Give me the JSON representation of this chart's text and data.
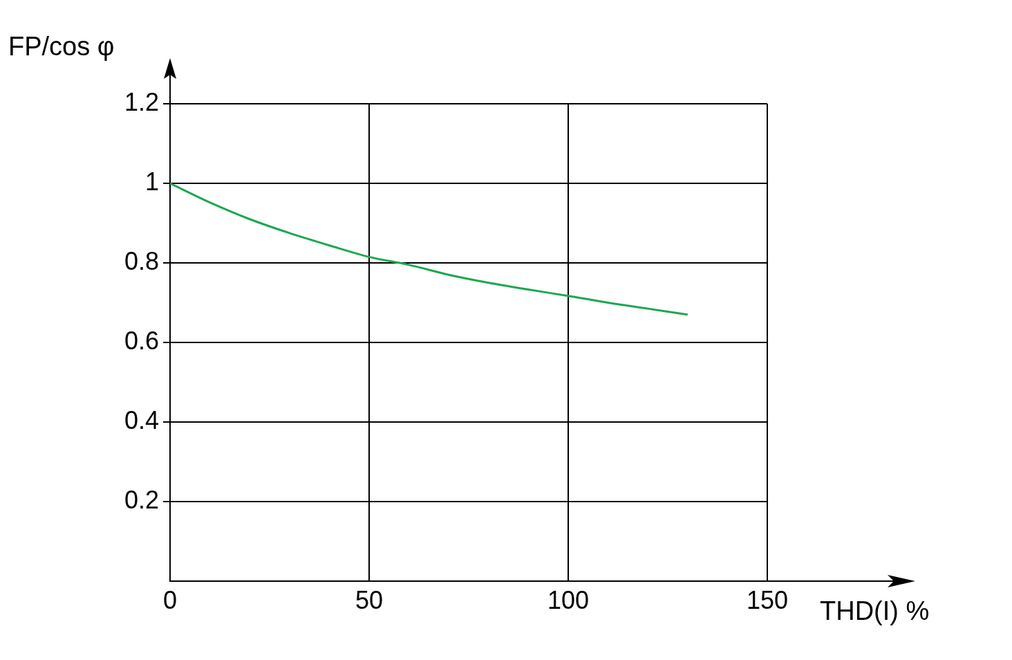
{
  "chart_data": {
    "type": "line",
    "xlabel": "THD(I) %",
    "ylabel": "FP/cos φ",
    "x": [
      0,
      10,
      20,
      30,
      40,
      50,
      60,
      70,
      80,
      90,
      100,
      110,
      120,
      130
    ],
    "values": [
      1.0,
      0.952,
      0.91,
      0.875,
      0.844,
      0.815,
      0.795,
      0.77,
      0.75,
      0.733,
      0.717,
      0.7,
      0.685,
      0.67
    ],
    "color": "#1aa84f",
    "marker": "none",
    "xlim": [
      0,
      150
    ],
    "xticks": [
      0,
      50,
      100,
      150
    ],
    "ylim": [
      0,
      1.2
    ],
    "yticks": [
      0.2,
      0.4,
      0.6,
      0.8,
      1,
      1.2
    ],
    "grid": true,
    "legend": false
  }
}
